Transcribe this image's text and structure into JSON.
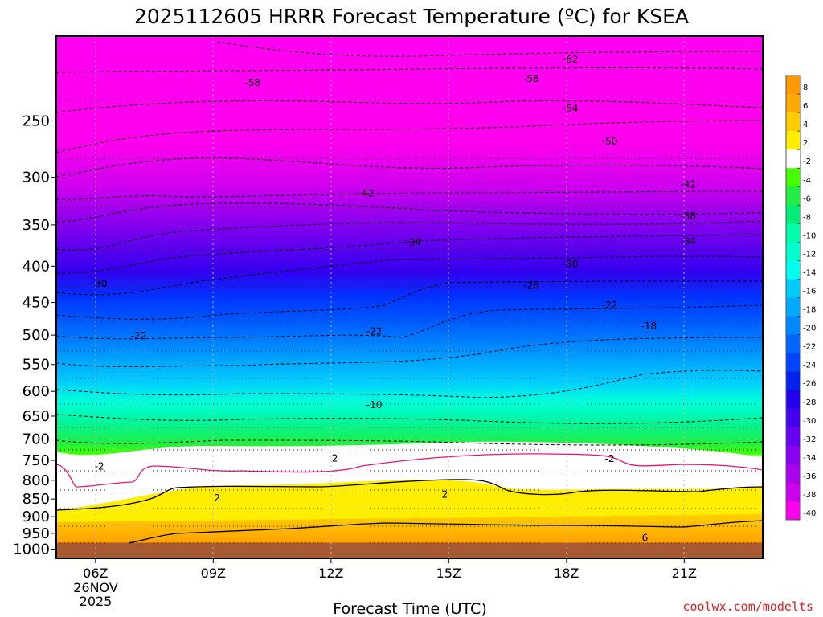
{
  "chart_data": {
    "type": "heatmap",
    "title": "2025112605 HRRR Forecast Temperature (ºC) for KSEA",
    "xlabel": "Forecast Time (UTC)",
    "ylabel": "",
    "credit": "coolwx.com/modelts",
    "x_ticks": [
      "06Z",
      "09Z",
      "12Z",
      "15Z",
      "18Z",
      "21Z"
    ],
    "x_date_line1": "26NOV",
    "x_date_line2": "2025",
    "x_range_hours": [
      5.0,
      23.0
    ],
    "y_ticks": [
      250,
      300,
      350,
      400,
      450,
      500,
      550,
      600,
      650,
      700,
      750,
      800,
      850,
      900,
      950,
      1000
    ],
    "y_units": "hPa",
    "y_range": [
      1030,
      190
    ],
    "colorbar_labels": [
      "8",
      "6",
      "4",
      "2",
      "-2",
      "-4",
      "-6",
      "-8",
      "-10",
      "-12",
      "-14",
      "-16",
      "-18",
      "-20",
      "-22",
      "-24",
      "-26",
      "-28",
      "-30",
      "-32",
      "-34",
      "-36",
      "-38",
      "-40"
    ],
    "colorbar_colors": [
      "#ff9900",
      "#ffaa00",
      "#ffcc00",
      "#ffee00",
      "#ffffff",
      "#44ff00",
      "#22ee44",
      "#00ee77",
      "#00ffaa",
      "#00ffcc",
      "#00ffee",
      "#00ccff",
      "#00aaff",
      "#0088ff",
      "#0066ff",
      "#0044ff",
      "#0022ee",
      "#2200ee",
      "#4400ee",
      "#6600ee",
      "#8800ee",
      "#aa00ee",
      "#cc00ee",
      "#ff00ee"
    ],
    "contour_labels": [
      {
        "text": "-62",
        "hour": 18.1,
        "p": 205
      },
      {
        "text": "-58",
        "hour": 10.0,
        "p": 221
      },
      {
        "text": "-58",
        "hour": 17.1,
        "p": 218
      },
      {
        "text": "-54",
        "hour": 18.1,
        "p": 240
      },
      {
        "text": "-50",
        "hour": 19.1,
        "p": 267
      },
      {
        "text": "-42",
        "hour": 12.9,
        "p": 316
      },
      {
        "text": "-42",
        "hour": 21.1,
        "p": 307
      },
      {
        "text": "-38",
        "hour": 21.1,
        "p": 340
      },
      {
        "text": "-34",
        "hour": 14.1,
        "p": 370
      },
      {
        "text": "-34",
        "hour": 21.1,
        "p": 369
      },
      {
        "text": "-30",
        "hour": 6.1,
        "p": 423
      },
      {
        "text": "-30",
        "hour": 18.1,
        "p": 397
      },
      {
        "text": "-26",
        "hour": 17.1,
        "p": 426
      },
      {
        "text": "-22",
        "hour": 7.1,
        "p": 501
      },
      {
        "text": "-22",
        "hour": 13.1,
        "p": 494
      },
      {
        "text": "-22",
        "hour": 19.1,
        "p": 454
      },
      {
        "text": "-18",
        "hour": 20.1,
        "p": 486
      },
      {
        "text": "-10",
        "hour": 13.1,
        "p": 627
      },
      {
        "text": "-2",
        "hour": 6.1,
        "p": 765
      },
      {
        "text": "2",
        "hour": 12.1,
        "p": 745
      },
      {
        "text": "-2",
        "hour": 19.1,
        "p": 746
      },
      {
        "text": "2",
        "hour": 9.1,
        "p": 848
      },
      {
        "text": "2",
        "hour": 14.9,
        "p": 838
      },
      {
        "text": "6",
        "hour": 20.0,
        "p": 964
      }
    ]
  }
}
